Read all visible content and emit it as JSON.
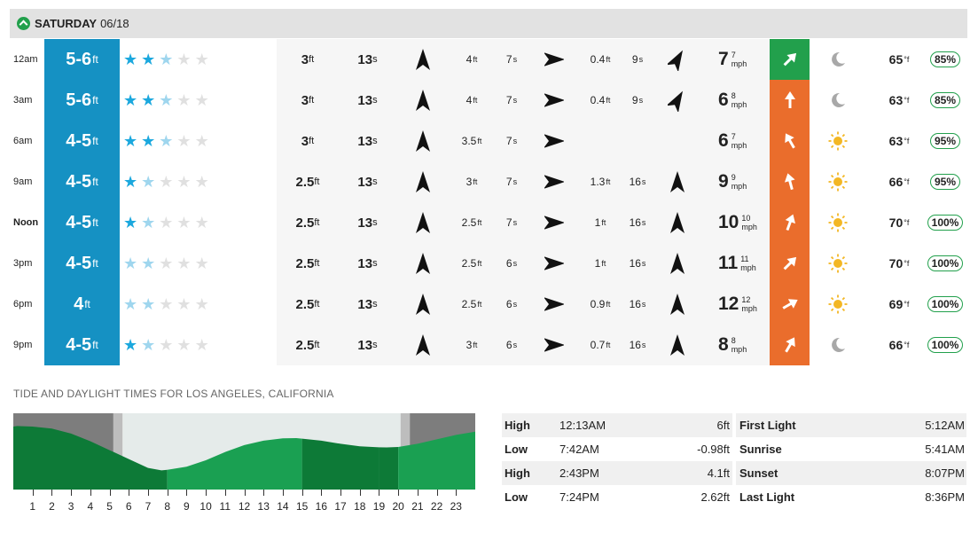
{
  "day": {
    "name": "SATURDAY",
    "date": "06/18"
  },
  "rows": [
    {
      "time": "12am",
      "bold": false,
      "surf": "5-6",
      "surf_unit": "ft",
      "stars": [
        2,
        2,
        1,
        0,
        0
      ],
      "pht": "3",
      "pht_u": "ft",
      "pper": "13",
      "pper_u": "s",
      "pdir": 180,
      "sht": "4",
      "sht_u": "ft",
      "sper": "7",
      "sper_u": "s",
      "sdir": 270,
      "tht": "0.4",
      "tht_u": "ft",
      "tper": "9",
      "tper_u": "s",
      "tdir": 210,
      "wind": "7",
      "gust": "7",
      "wunit": "mph",
      "wcolor": "g",
      "wdir": 225,
      "wx": "moon",
      "temp": "65",
      "tunit": "°f",
      "rh": "85%"
    },
    {
      "time": "3am",
      "bold": false,
      "surf": "5-6",
      "surf_unit": "ft",
      "stars": [
        2,
        2,
        1,
        0,
        0
      ],
      "pht": "3",
      "pht_u": "ft",
      "pper": "13",
      "pper_u": "s",
      "pdir": 180,
      "sht": "4",
      "sht_u": "ft",
      "sper": "7",
      "sper_u": "s",
      "sdir": 270,
      "tht": "0.4",
      "tht_u": "ft",
      "tper": "9",
      "tper_u": "s",
      "tdir": 210,
      "wind": "6",
      "gust": "8",
      "wunit": "mph",
      "wcolor": "o",
      "wdir": 180,
      "wx": "moon",
      "temp": "63",
      "tunit": "°f",
      "rh": "85%"
    },
    {
      "time": "6am",
      "bold": false,
      "surf": "4-5",
      "surf_unit": "ft",
      "stars": [
        2,
        2,
        1,
        0,
        0
      ],
      "pht": "3",
      "pht_u": "ft",
      "pper": "13",
      "pper_u": "s",
      "pdir": 180,
      "sht": "3.5",
      "sht_u": "ft",
      "sper": "7",
      "sper_u": "s",
      "sdir": 270,
      "tht": "",
      "tht_u": "",
      "tper": "",
      "tper_u": "",
      "tdir": null,
      "wind": "6",
      "gust": "7",
      "wunit": "mph",
      "wcolor": "o",
      "wdir": 150,
      "wx": "sun",
      "temp": "63",
      "tunit": "°f",
      "rh": "95%"
    },
    {
      "time": "9am",
      "bold": false,
      "surf": "4-5",
      "surf_unit": "ft",
      "stars": [
        2,
        1,
        0,
        0,
        0
      ],
      "pht": "2.5",
      "pht_u": "ft",
      "pper": "13",
      "pper_u": "s",
      "pdir": 180,
      "sht": "3",
      "sht_u": "ft",
      "sper": "7",
      "sper_u": "s",
      "sdir": 270,
      "tht": "1.3",
      "tht_u": "ft",
      "tper": "16",
      "tper_u": "s",
      "tdir": 180,
      "wind": "9",
      "gust": "9",
      "wunit": "mph",
      "wcolor": "o",
      "wdir": 165,
      "wx": "sun",
      "temp": "66",
      "tunit": "°f",
      "rh": "95%"
    },
    {
      "time": "Noon",
      "bold": true,
      "surf": "4-5",
      "surf_unit": "ft",
      "stars": [
        2,
        1,
        0,
        0,
        0
      ],
      "pht": "2.5",
      "pht_u": "ft",
      "pper": "13",
      "pper_u": "s",
      "pdir": 180,
      "sht": "2.5",
      "sht_u": "ft",
      "sper": "7",
      "sper_u": "s",
      "sdir": 270,
      "tht": "1",
      "tht_u": "ft",
      "tper": "16",
      "tper_u": "s",
      "tdir": 180,
      "wind": "10",
      "gust": "10",
      "wunit": "mph",
      "wcolor": "o",
      "wdir": 200,
      "wx": "sun",
      "temp": "70",
      "tunit": "°f",
      "rh": "100%"
    },
    {
      "time": "3pm",
      "bold": false,
      "surf": "4-5",
      "surf_unit": "ft",
      "stars": [
        1,
        1,
        0,
        0,
        0
      ],
      "pht": "2.5",
      "pht_u": "ft",
      "pper": "13",
      "pper_u": "s",
      "pdir": 180,
      "sht": "2.5",
      "sht_u": "ft",
      "sper": "6",
      "sper_u": "s",
      "sdir": 270,
      "tht": "1",
      "tht_u": "ft",
      "tper": "16",
      "tper_u": "s",
      "tdir": 180,
      "wind": "11",
      "gust": "11",
      "wunit": "mph",
      "wcolor": "o",
      "wdir": 225,
      "wx": "sun",
      "temp": "70",
      "tunit": "°f",
      "rh": "100%"
    },
    {
      "time": "6pm",
      "bold": false,
      "surf": "4",
      "surf_unit": "ft",
      "stars": [
        1,
        1,
        0,
        0,
        0
      ],
      "pht": "2.5",
      "pht_u": "ft",
      "pper": "13",
      "pper_u": "s",
      "pdir": 180,
      "sht": "2.5",
      "sht_u": "ft",
      "sper": "6",
      "sper_u": "s",
      "sdir": 270,
      "tht": "0.9",
      "tht_u": "ft",
      "tper": "16",
      "tper_u": "s",
      "tdir": 180,
      "wind": "12",
      "gust": "12",
      "wunit": "mph",
      "wcolor": "o",
      "wdir": 240,
      "wx": "sun",
      "temp": "69",
      "tunit": "°f",
      "rh": "100%"
    },
    {
      "time": "9pm",
      "bold": false,
      "surf": "4-5",
      "surf_unit": "ft",
      "stars": [
        2,
        1,
        0,
        0,
        0
      ],
      "pht": "2.5",
      "pht_u": "ft",
      "pper": "13",
      "pper_u": "s",
      "pdir": 180,
      "sht": "3",
      "sht_u": "ft",
      "sper": "6",
      "sper_u": "s",
      "sdir": 270,
      "tht": "0.7",
      "tht_u": "ft",
      "tper": "16",
      "tper_u": "s",
      "tdir": 180,
      "wind": "8",
      "gust": "8",
      "wunit": "mph",
      "wcolor": "o",
      "wdir": 210,
      "wx": "moon",
      "temp": "66",
      "tunit": "°f",
      "rh": "100%"
    }
  ],
  "tide_title": "TIDE AND DAYLIGHT TIMES FOR LOS ANGELES, CALIFORNIA",
  "tide_table": [
    {
      "type": "High",
      "time": "12:13AM",
      "height": "6ft"
    },
    {
      "type": "Low",
      "time": "7:42AM",
      "height": "-0.98ft"
    },
    {
      "type": "High",
      "time": "2:43PM",
      "height": "4.1ft"
    },
    {
      "type": "Low",
      "time": "7:24PM",
      "height": "2.62ft"
    }
  ],
  "light_table": [
    {
      "name": "First Light",
      "time": "5:12AM"
    },
    {
      "name": "Sunrise",
      "time": "5:41AM"
    },
    {
      "name": "Sunset",
      "time": "8:07PM"
    },
    {
      "name": "Last Light",
      "time": "8:36PM"
    }
  ],
  "chart_data": {
    "type": "area",
    "hours": [
      1,
      2,
      3,
      4,
      5,
      6,
      7,
      8,
      9,
      10,
      11,
      12,
      13,
      14,
      15,
      16,
      17,
      18,
      19,
      20,
      21,
      22,
      23
    ],
    "xlim": [
      0,
      24
    ],
    "tide_curve": [
      [
        0,
        5.9
      ],
      [
        0.2,
        6.0
      ],
      [
        1,
        5.9
      ],
      [
        2,
        5.6
      ],
      [
        3,
        4.8
      ],
      [
        4,
        3.6
      ],
      [
        5,
        2.2
      ],
      [
        6,
        0.8
      ],
      [
        7,
        -0.6
      ],
      [
        7.7,
        -0.98
      ],
      [
        8,
        -0.9
      ],
      [
        9,
        -0.4
      ],
      [
        10,
        0.6
      ],
      [
        11,
        1.9
      ],
      [
        12,
        3.0
      ],
      [
        13,
        3.7
      ],
      [
        14,
        4.05
      ],
      [
        14.7,
        4.1
      ],
      [
        15,
        4.0
      ],
      [
        16,
        3.7
      ],
      [
        17,
        3.2
      ],
      [
        18,
        2.8
      ],
      [
        19,
        2.65
      ],
      [
        19.4,
        2.62
      ],
      [
        20,
        2.7
      ],
      [
        21,
        3.2
      ],
      [
        22,
        3.9
      ],
      [
        23,
        4.6
      ],
      [
        24,
        5.1
      ]
    ],
    "ylim": [
      -4,
      8
    ],
    "first_light": 5.2,
    "sunrise": 5.68,
    "sunset": 20.12,
    "last_light": 20.6,
    "colors": {
      "night": "#7d7d7d",
      "twilight": "#bdbdbd",
      "day": "#e5ebea",
      "tide": "#1aa052",
      "tide_dark": "#0d7a37"
    }
  }
}
